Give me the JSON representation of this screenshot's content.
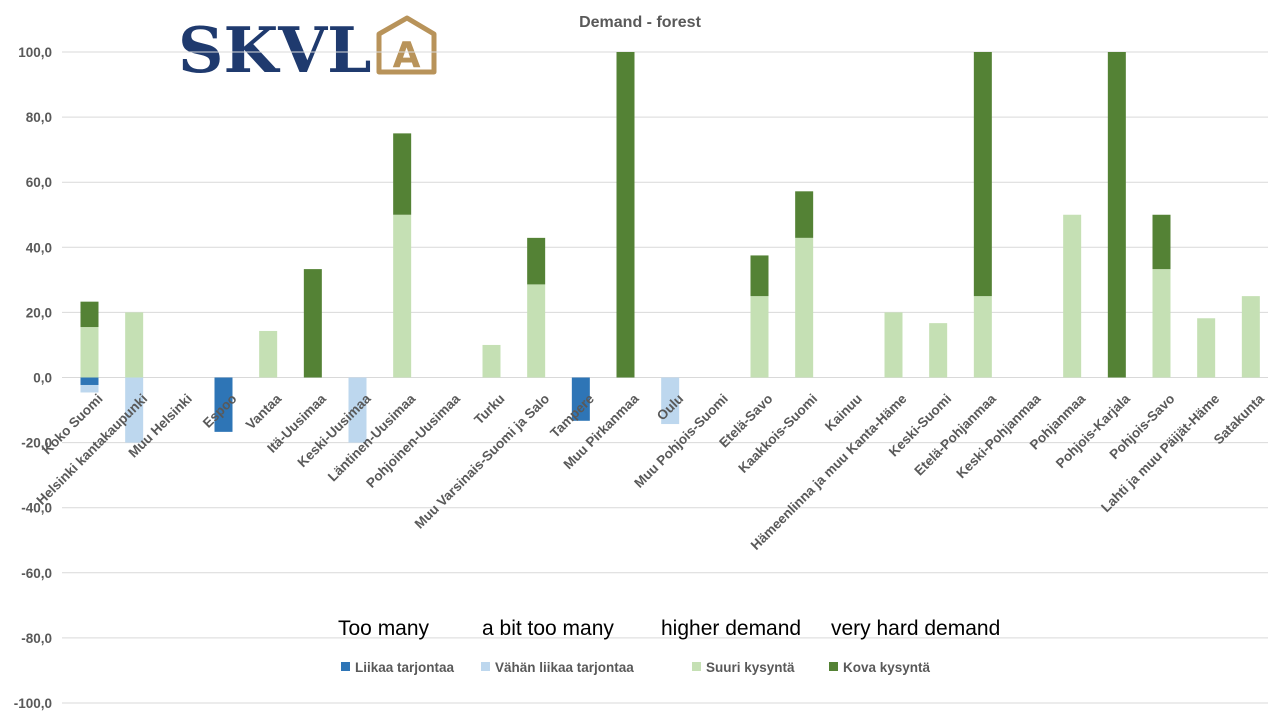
{
  "logo": {
    "text": "SKVL",
    "mark": "A",
    "text_color": "#1f3a6e",
    "mark_color": "#b8935a"
  },
  "annotations": [
    "Too many",
    "a bit too many",
    "higher demand",
    "very hard demand"
  ],
  "chart_data": {
    "type": "bar",
    "stacked": true,
    "title": "Demand - forest",
    "xlabel": "",
    "ylabel": "",
    "ylim": [
      -100,
      100
    ],
    "yticks": [
      -100,
      -80,
      -60,
      -40,
      -20,
      0,
      20,
      40,
      60,
      80,
      100
    ],
    "ytick_labels": [
      "-100,0",
      "-80,0",
      "-60,0",
      "-40,0",
      "-20,0",
      "0,0",
      "20,0",
      "40,0",
      "60,0",
      "80,0",
      "100,0"
    ],
    "grid": true,
    "legend_position": "bottom",
    "categories": [
      "Koko Suomi",
      "Helsinki kantakaupunki",
      "Muu Helsinki",
      "Espoo",
      "Vantaa",
      "Itä-Uusimaa",
      "Keski-Uusimaa",
      "Läntinen-Uusimaa",
      "Pohjoinen-Uusimaa",
      "Turku",
      "Muu Varsinais-Suomi ja Salo",
      "Tampere",
      "Muu Pirkanmaa",
      "Oulu",
      "Muu Pohjois-Suomi",
      "Etelä-Savo",
      "Kaakkois-Suomi",
      "Kainuu",
      "Hämeenlinna ja muu Kanta-Häme",
      "Keski-Suomi",
      "Etelä-Pohjanmaa",
      "Keski-Pohjanmaa",
      "Pohjanmaa",
      "Pohjois-Karjala",
      "Pohjois-Savo",
      "Lahti ja muu Päijät-Häme",
      "Satakunta"
    ],
    "series": [
      {
        "name": "Liikaa tarjontaa",
        "color": "#2e75b6",
        "values": [
          -2.3,
          0,
          0,
          -16.7,
          0,
          0,
          0,
          0,
          0,
          0,
          0,
          -13.3,
          0,
          0,
          0,
          0,
          0,
          0,
          0,
          0,
          0,
          0,
          0,
          0,
          0,
          0,
          0
        ]
      },
      {
        "name": "Vähän liikaa tarjontaa",
        "color": "#bdd7ee",
        "values": [
          -2.3,
          -20,
          0,
          0,
          0,
          0,
          -20,
          0,
          0,
          0,
          0,
          0,
          0,
          -14.3,
          0,
          0,
          0,
          0,
          0,
          0,
          0,
          0,
          0,
          0,
          0,
          0,
          0
        ]
      },
      {
        "name": "Suuri kysyntä",
        "color": "#c5e0b4",
        "values": [
          15.5,
          20,
          0,
          0,
          14.3,
          0,
          0,
          50,
          0,
          10,
          28.6,
          0,
          0,
          0,
          0,
          25,
          42.9,
          0,
          20,
          16.7,
          25,
          0,
          50,
          0,
          33.3,
          18.2,
          25
        ]
      },
      {
        "name": "Kova kysyntä",
        "color": "#548235",
        "values": [
          7.8,
          0,
          0,
          0,
          0,
          33.3,
          0,
          25,
          0,
          0,
          14.3,
          0,
          100,
          0,
          0,
          12.5,
          14.3,
          0,
          0,
          0,
          75,
          0,
          0,
          100,
          16.7,
          0,
          0
        ]
      }
    ]
  }
}
